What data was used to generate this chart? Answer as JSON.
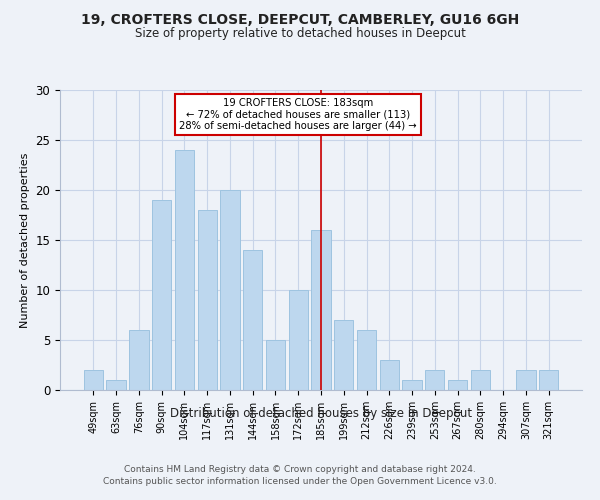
{
  "title": "19, CROFTERS CLOSE, DEEPCUT, CAMBERLEY, GU16 6GH",
  "subtitle": "Size of property relative to detached houses in Deepcut",
  "xlabel": "Distribution of detached houses by size in Deepcut",
  "ylabel": "Number of detached properties",
  "footer1": "Contains HM Land Registry data © Crown copyright and database right 2024.",
  "footer2": "Contains public sector information licensed under the Open Government Licence v3.0.",
  "bar_labels": [
    "49sqm",
    "63sqm",
    "76sqm",
    "90sqm",
    "104sqm",
    "117sqm",
    "131sqm",
    "144sqm",
    "158sqm",
    "172sqm",
    "185sqm",
    "199sqm",
    "212sqm",
    "226sqm",
    "239sqm",
    "253sqm",
    "267sqm",
    "280sqm",
    "294sqm",
    "307sqm",
    "321sqm"
  ],
  "bar_values": [
    2,
    1,
    6,
    19,
    24,
    18,
    20,
    14,
    5,
    10,
    16,
    7,
    6,
    3,
    1,
    2,
    1,
    2,
    0,
    2,
    2
  ],
  "bar_color": "#bdd7ee",
  "bar_edgecolor": "#9ec4e0",
  "annotation_line_x_label": "185sqm",
  "annotation_line_color": "#cc0000",
  "annotation_text_line1": "19 CROFTERS CLOSE: 183sqm",
  "annotation_text_line2": "← 72% of detached houses are smaller (113)",
  "annotation_text_line3": "28% of semi-detached houses are larger (44) →",
  "annotation_box_color": "#cc0000",
  "ylim": [
    0,
    30
  ],
  "yticks": [
    0,
    5,
    10,
    15,
    20,
    25,
    30
  ],
  "grid_color": "#c8d4e8",
  "background_color": "#eef2f8"
}
